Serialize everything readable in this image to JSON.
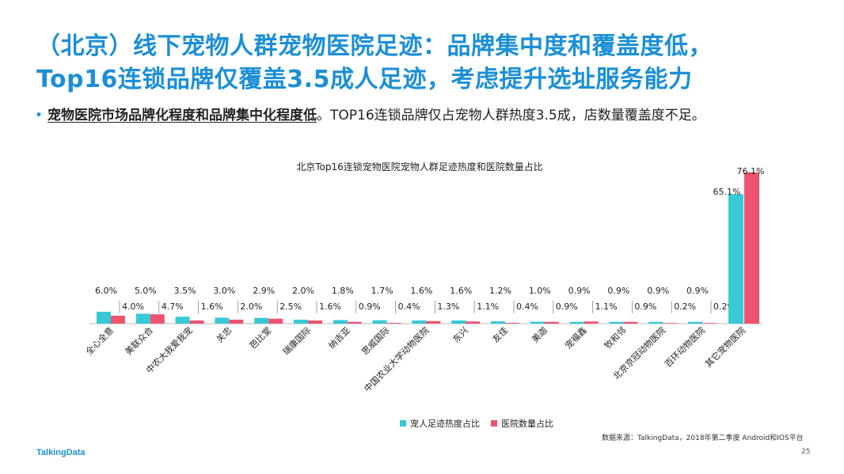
{
  "slide": {
    "title_line1": "（北京）线下宠物人群宠物医院足迹：品牌集中度和覆盖度低，",
    "title_line2": "Top16连锁品牌仅覆盖3.5成人足迹，考虑提升选址服务能力",
    "bullet_emphasis": "宠物医院市场品牌化程度和品牌集中化程度低",
    "bullet_rest": "。TOP16连锁品牌仅占宠物人群热度3.5成，店数量覆盖度不足。",
    "source": "数据来源：TalkingData，2018年第二季度 Android和IOS平台",
    "brand": "TalkingData",
    "page_number": "25"
  },
  "colors": {
    "title": "#1c8fd6",
    "series_footprint": "#36c9d6",
    "series_hospital": "#ee5470"
  },
  "chart_data": {
    "type": "bar",
    "title": "北京Top16连锁宠物医院宠物人群足迹热度和医院数量占比",
    "categories": [
      "全心全意",
      "美联众合",
      "中农大我爱我宠",
      "关忠",
      "芭比堂",
      "瑞康国际",
      "纳吉亚",
      "思威国际",
      "中国农业大学动物医院",
      "东兴",
      "友佳",
      "美迦",
      "宠福鑫",
      "牧和邻",
      "北京京冠动物医院",
      "百环动物医院",
      "其它宠物医院"
    ],
    "series": [
      {
        "name": "宠人足迹热度占比",
        "values": [
          6.0,
          5.0,
          3.5,
          3.0,
          2.9,
          2.0,
          1.8,
          1.7,
          1.6,
          1.6,
          1.2,
          1.0,
          0.9,
          0.9,
          0.9,
          0.9,
          65.1
        ]
      },
      {
        "name": "医院数量占比",
        "values": [
          4.0,
          4.7,
          1.6,
          2.0,
          2.5,
          1.6,
          0.9,
          0.4,
          1.3,
          1.1,
          0.4,
          0.9,
          1.1,
          0.9,
          0.2,
          0.2,
          76.1
        ]
      }
    ],
    "value_labels": [
      [
        "6.0%",
        "5.0%",
        "3.5%",
        "3.0%",
        "2.9%",
        "2.0%",
        "1.8%",
        "1.7%",
        "1.6%",
        "1.6%",
        "1.2%",
        "1.0%",
        "0.9%",
        "0.9%",
        "0.9%",
        "0.9%",
        "65.1%"
      ],
      [
        "4.0%",
        "4.7%",
        "1.6%",
        "2.0%",
        "2.5%",
        "1.6%",
        "0.9%",
        "0.4%",
        "1.3%",
        "1.1%",
        "0.4%",
        "0.9%",
        "1.1%",
        "0.9%",
        "0.2%",
        "0.2%",
        "76.1%"
      ]
    ],
    "ylim": [
      0,
      80
    ],
    "grid": false,
    "legend": "bottom"
  }
}
